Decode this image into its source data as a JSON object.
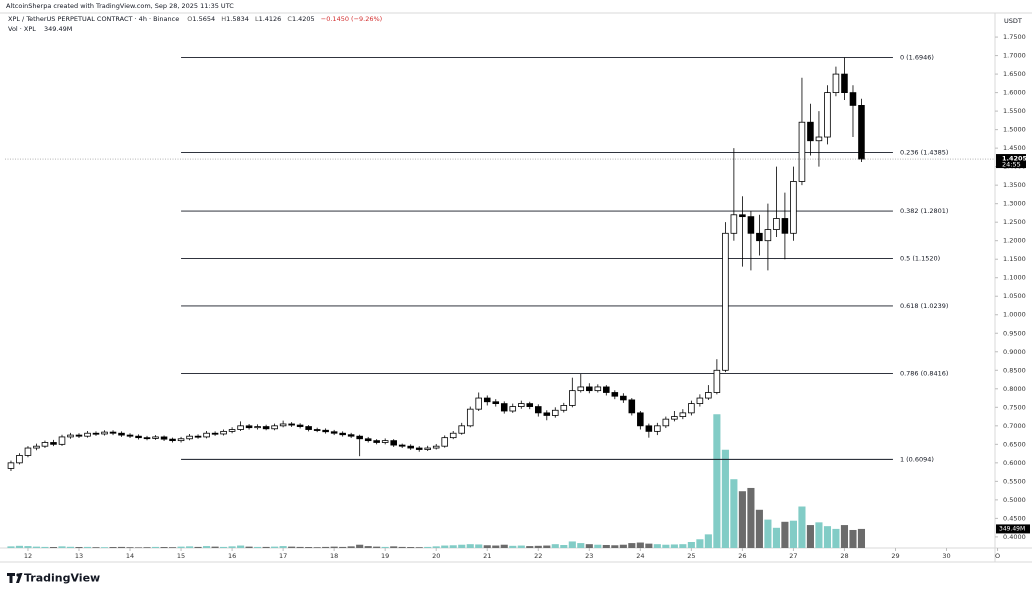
{
  "header": {
    "credit": "AltcoinSherpa created with TradingView.com, Sep 28, 2025 11:35 UTC",
    "symbol": "XPL / TetherUS PERPETUAL CONTRACT · 4h · Binance",
    "ohlc_labels": [
      "O",
      "H",
      "L",
      "C"
    ],
    "change": "−0.1450 (−9.26%)",
    "volume_title": "Vol · XPL"
  },
  "chart_data": {
    "type": "candlestick",
    "x": [
      11.667,
      11.833,
      12,
      12.167,
      12.333,
      12.5,
      12.667,
      12.833,
      13,
      13.167,
      13.333,
      13.5,
      13.667,
      13.833,
      14,
      14.167,
      14.333,
      14.5,
      14.667,
      14.833,
      15,
      15.167,
      15.333,
      15.5,
      15.667,
      15.833,
      16,
      16.167,
      16.333,
      16.5,
      16.667,
      16.833,
      17,
      17.167,
      17.333,
      17.5,
      17.667,
      17.833,
      18,
      18.167,
      18.333,
      18.5,
      18.667,
      18.833,
      19,
      19.167,
      19.333,
      19.5,
      19.667,
      19.833,
      20,
      20.167,
      20.333,
      20.5,
      20.667,
      20.833,
      21,
      21.167,
      21.333,
      21.5,
      21.667,
      21.833,
      22,
      22.167,
      22.333,
      22.5,
      22.667,
      22.833,
      23,
      23.167,
      23.333,
      23.5,
      23.667,
      23.833,
      24,
      24.167,
      24.333,
      24.5,
      24.667,
      24.833,
      25,
      25.167,
      25.333,
      25.5,
      25.667,
      25.833,
      26,
      26.167,
      26.333,
      26.5,
      26.667,
      26.833,
      27,
      27.167,
      27.333,
      27.5,
      27.667,
      27.833,
      28,
      28.167,
      28.333
    ],
    "open": [
      0.585,
      0.6,
      0.62,
      0.64,
      0.645,
      0.655,
      0.65,
      0.67,
      0.675,
      0.672,
      0.68,
      0.678,
      0.683,
      0.68,
      0.675,
      0.672,
      0.668,
      0.666,
      0.67,
      0.664,
      0.66,
      0.665,
      0.672,
      0.67,
      0.68,
      0.678,
      0.685,
      0.69,
      0.7,
      0.695,
      0.698,
      0.692,
      0.7,
      0.705,
      0.702,
      0.698,
      0.69,
      0.688,
      0.684,
      0.68,
      0.676,
      0.672,
      0.665,
      0.66,
      0.655,
      0.66,
      0.648,
      0.645,
      0.64,
      0.636,
      0.64,
      0.645,
      0.668,
      0.68,
      0.7,
      0.745,
      0.775,
      0.765,
      0.76,
      0.74,
      0.752,
      0.76,
      0.752,
      0.735,
      0.728,
      0.742,
      0.755,
      0.795,
      0.805,
      0.795,
      0.805,
      0.79,
      0.78,
      0.77,
      0.735,
      0.7,
      0.685,
      0.7,
      0.718,
      0.725,
      0.735,
      0.76,
      0.775,
      0.79,
      0.85,
      1.22,
      1.27,
      1.265,
      1.22,
      1.2,
      1.23,
      1.26,
      1.22,
      1.36,
      1.52,
      1.47,
      1.48,
      1.6,
      1.65,
      1.6,
      1.5654
    ],
    "high": [
      0.606,
      0.626,
      0.645,
      0.652,
      0.66,
      0.662,
      0.676,
      0.681,
      0.68,
      0.686,
      0.685,
      0.688,
      0.688,
      0.685,
      0.68,
      0.677,
      0.673,
      0.675,
      0.674,
      0.668,
      0.67,
      0.678,
      0.677,
      0.686,
      0.685,
      0.69,
      0.696,
      0.712,
      0.705,
      0.704,
      0.703,
      0.706,
      0.714,
      0.71,
      0.707,
      0.702,
      0.695,
      0.693,
      0.689,
      0.685,
      0.681,
      0.676,
      0.67,
      0.664,
      0.666,
      0.664,
      0.652,
      0.65,
      0.645,
      0.646,
      0.651,
      0.674,
      0.686,
      0.708,
      0.752,
      0.79,
      0.782,
      0.772,
      0.766,
      0.76,
      0.768,
      0.765,
      0.758,
      0.742,
      0.75,
      0.762,
      0.83,
      0.84,
      0.815,
      0.812,
      0.81,
      0.796,
      0.788,
      0.775,
      0.74,
      0.706,
      0.708,
      0.725,
      0.74,
      0.745,
      0.768,
      0.785,
      0.81,
      0.88,
      1.25,
      1.45,
      1.32,
      1.28,
      1.27,
      1.3,
      1.4,
      1.33,
      1.4,
      1.64,
      1.57,
      1.55,
      1.62,
      1.67,
      1.695,
      1.62,
      1.5834
    ],
    "low": [
      0.578,
      0.596,
      0.615,
      0.634,
      0.64,
      0.645,
      0.646,
      0.665,
      0.667,
      0.668,
      0.673,
      0.674,
      0.675,
      0.67,
      0.667,
      0.663,
      0.661,
      0.662,
      0.659,
      0.655,
      0.655,
      0.661,
      0.665,
      0.666,
      0.673,
      0.674,
      0.68,
      0.686,
      0.69,
      0.69,
      0.688,
      0.688,
      0.696,
      0.697,
      0.693,
      0.685,
      0.683,
      0.679,
      0.675,
      0.671,
      0.667,
      0.618,
      0.655,
      0.65,
      0.65,
      0.643,
      0.64,
      0.635,
      0.63,
      0.632,
      0.636,
      0.641,
      0.664,
      0.676,
      0.696,
      0.74,
      0.755,
      0.752,
      0.733,
      0.735,
      0.746,
      0.745,
      0.725,
      0.715,
      0.722,
      0.736,
      0.75,
      0.79,
      0.788,
      0.79,
      0.782,
      0.772,
      0.762,
      0.728,
      0.69,
      0.668,
      0.675,
      0.694,
      0.712,
      0.718,
      0.728,
      0.752,
      0.77,
      0.785,
      0.845,
      1.2,
      1.13,
      1.12,
      1.16,
      1.12,
      1.21,
      1.15,
      1.2,
      1.35,
      1.43,
      1.4,
      1.46,
      1.59,
      1.58,
      1.48,
      1.4126
    ],
    "close": [
      0.6,
      0.62,
      0.64,
      0.645,
      0.655,
      0.65,
      0.67,
      0.675,
      0.672,
      0.68,
      0.678,
      0.683,
      0.68,
      0.675,
      0.672,
      0.668,
      0.666,
      0.67,
      0.664,
      0.66,
      0.665,
      0.672,
      0.67,
      0.68,
      0.678,
      0.685,
      0.69,
      0.7,
      0.695,
      0.698,
      0.692,
      0.7,
      0.705,
      0.702,
      0.698,
      0.69,
      0.688,
      0.684,
      0.68,
      0.676,
      0.672,
      0.665,
      0.66,
      0.655,
      0.66,
      0.648,
      0.645,
      0.64,
      0.636,
      0.64,
      0.645,
      0.668,
      0.68,
      0.7,
      0.745,
      0.775,
      0.765,
      0.76,
      0.74,
      0.752,
      0.76,
      0.752,
      0.735,
      0.728,
      0.742,
      0.755,
      0.795,
      0.805,
      0.795,
      0.805,
      0.79,
      0.78,
      0.77,
      0.735,
      0.7,
      0.685,
      0.7,
      0.718,
      0.725,
      0.735,
      0.76,
      0.775,
      0.79,
      0.85,
      1.22,
      1.27,
      1.265,
      1.22,
      1.2,
      1.23,
      1.26,
      1.22,
      1.36,
      1.52,
      1.47,
      1.48,
      1.6,
      1.65,
      1.6,
      1.5654,
      1.4205
    ],
    "volume": [
      30,
      40,
      35,
      25,
      20,
      18,
      30,
      22,
      18,
      20,
      15,
      15,
      18,
      20,
      15,
      12,
      15,
      20,
      18,
      15,
      25,
      30,
      20,
      35,
      25,
      20,
      30,
      45,
      25,
      20,
      20,
      25,
      35,
      25,
      20,
      18,
      15,
      20,
      25,
      20,
      30,
      60,
      35,
      25,
      20,
      30,
      20,
      18,
      15,
      20,
      30,
      45,
      50,
      60,
      70,
      65,
      50,
      45,
      60,
      40,
      45,
      35,
      40,
      45,
      70,
      55,
      120,
      90,
      70,
      60,
      55,
      50,
      60,
      90,
      100,
      80,
      70,
      60,
      65,
      70,
      110,
      160,
      250,
      2450,
      1800,
      1260,
      1040,
      1100,
      700,
      520,
      370,
      480,
      500,
      760,
      420,
      470,
      400,
      350,
      420,
      330,
      349.49
    ],
    "volume_label": "349.49M",
    "up_color": "#ffffff",
    "down_color": "#000000",
    "wick_color": "#000000",
    "volume_up_color": "#82ccc6",
    "volume_down_color": "#6b6b6b",
    "xlim": [
      11.55,
      30.95
    ],
    "xticks": [
      12,
      13,
      14,
      15,
      16,
      17,
      18,
      19,
      20,
      21,
      22,
      23,
      24,
      25,
      26,
      27,
      28,
      29,
      30,
      {
        "value": 31,
        "label": "O"
      }
    ],
    "ylim": [
      0.37,
      1.815
    ],
    "yticks": [
      {
        "value": 0.4,
        "label": "0.4000"
      },
      {
        "value": 0.45,
        "label": "0.4500"
      },
      {
        "value": 0.5,
        "label": "0.5000"
      },
      {
        "value": 0.55,
        "label": "0.5500"
      },
      {
        "value": 0.6,
        "label": "0.6000"
      },
      {
        "value": 0.65,
        "label": "0.6500"
      },
      {
        "value": 0.7,
        "label": "0.7000"
      },
      {
        "value": 0.75,
        "label": "0.7500"
      },
      {
        "value": 0.8,
        "label": "0.8000"
      },
      {
        "value": 0.85,
        "label": "0.8500"
      },
      {
        "value": 0.9,
        "label": "0.9000"
      },
      {
        "value": 0.95,
        "label": "0.9500"
      },
      {
        "value": 1.0,
        "label": "1.0000"
      },
      {
        "value": 1.05,
        "label": "1.0500"
      },
      {
        "value": 1.1,
        "label": "1.1000"
      },
      {
        "value": 1.15,
        "label": "1.1500"
      },
      {
        "value": 1.2,
        "label": "1.2000"
      },
      {
        "value": 1.25,
        "label": "1.2500"
      },
      {
        "value": 1.3,
        "label": "1.3000"
      },
      {
        "value": 1.35,
        "label": "1.3500"
      },
      {
        "value": 1.4,
        "label": "1.4000"
      },
      {
        "value": 1.45,
        "label": "1.4500"
      },
      {
        "value": 1.5,
        "label": "1.5000"
      },
      {
        "value": 1.55,
        "label": "1.5500"
      },
      {
        "value": 1.6,
        "label": "1.6000"
      },
      {
        "value": 1.65,
        "label": "1.6500"
      },
      {
        "value": 1.7,
        "label": "1.7000"
      },
      {
        "value": 1.75,
        "label": "1.7500"
      }
    ],
    "y2lim": [
      0,
      9800
    ],
    "y_axis_title": "USDT",
    "countdown": "24:55",
    "grid": false,
    "fib": {
      "x": [
        15,
        28.95
      ],
      "color": "#131722",
      "levels": [
        {
          "value": 1.6946,
          "label": "0 (1.6946)"
        },
        {
          "value": 1.4385,
          "label": "0.236 (1.4385)"
        },
        {
          "value": 1.2801,
          "label": "0.382 (1.2801)"
        },
        {
          "value": 1.152,
          "label": "0.5 (1.1520)"
        },
        {
          "value": 1.0239,
          "label": "0.618 (1.0239)"
        },
        {
          "value": 0.8416,
          "label": "0.786 (0.8416)"
        },
        {
          "value": 0.6094,
          "label": "1 (0.6094)"
        }
      ]
    }
  },
  "footer": {
    "brand": "TradingView"
  }
}
